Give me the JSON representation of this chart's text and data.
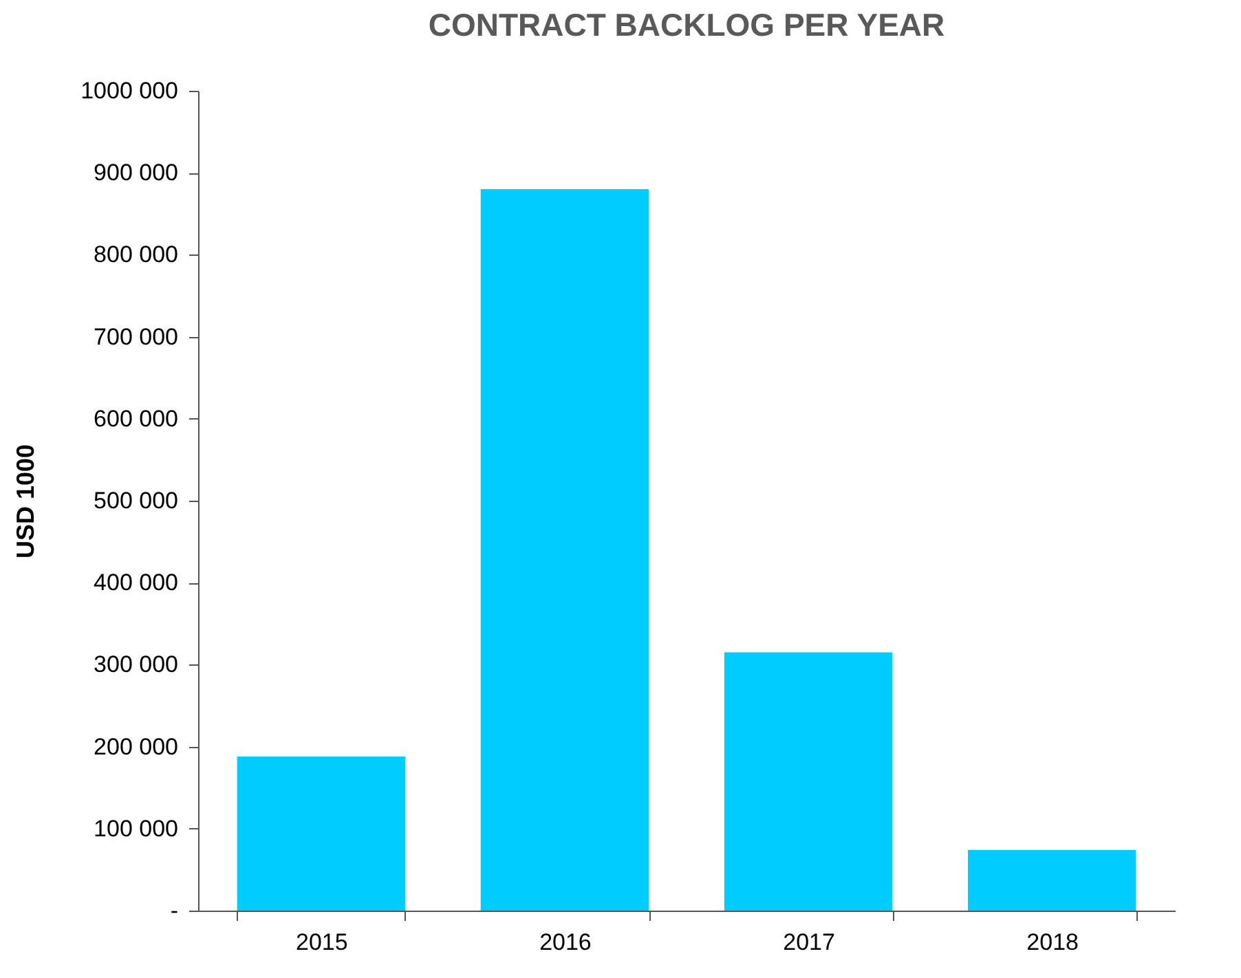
{
  "chart_data": {
    "type": "bar",
    "title": "CONTRACT BACKLOG PER YEAR",
    "ylabel": "USD 1000",
    "categories": [
      "2015",
      "2016",
      "2017",
      "2018"
    ],
    "values": [
      188000,
      880000,
      315000,
      74000
    ],
    "color": "#00ccff",
    "ylim": [
      0,
      1000000
    ],
    "yticks": [
      {
        "value": 0,
        "label": "-"
      },
      {
        "value": 100000,
        "label": "100 000"
      },
      {
        "value": 200000,
        "label": "200 000"
      },
      {
        "value": 300000,
        "label": "300 000"
      },
      {
        "value": 400000,
        "label": "400 000"
      },
      {
        "value": 500000,
        "label": "500 000"
      },
      {
        "value": 600000,
        "label": "600 000"
      },
      {
        "value": 700000,
        "label": "700 000"
      },
      {
        "value": 800000,
        "label": "800 000"
      },
      {
        "value": 900000,
        "label": "900 000"
      },
      {
        "value": 1000000,
        "label": "1000 000"
      }
    ],
    "grid": false,
    "legend": false
  }
}
